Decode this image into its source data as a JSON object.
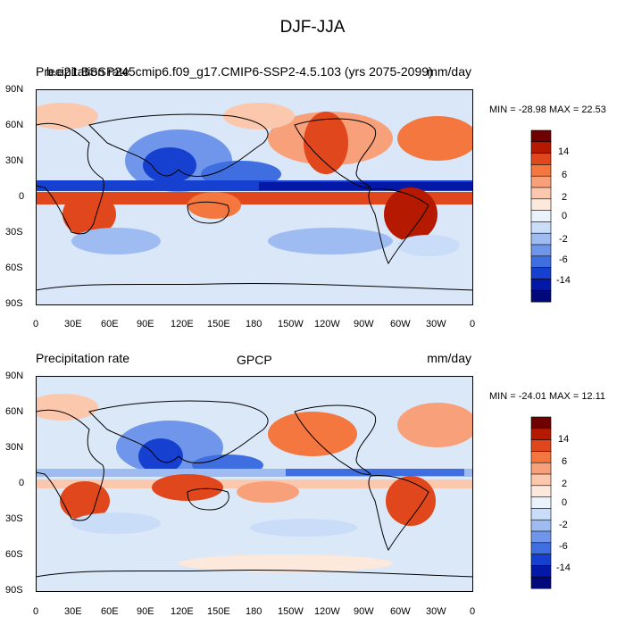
{
  "figure": {
    "title": "DJF-JJA"
  },
  "panels": [
    {
      "left_label": "Precipitation rate",
      "case_label": "b.e21.BSSP245cmip6.f09_g17.CMIP6-SSP2-4.5.103 (yrs 2075-2099)",
      "right_label": "mm/day",
      "min_max": "MIN = -28.98 MAX = 22.53",
      "lat_ticks": [
        "90N",
        "60N",
        "30N",
        "0",
        "30S",
        "60S",
        "90S"
      ],
      "lon_ticks": [
        "0",
        "30E",
        "60E",
        "90E",
        "120E",
        "150E",
        "180",
        "150W",
        "120W",
        "90W",
        "60W",
        "30W",
        "0"
      ]
    },
    {
      "left_label": "Precipitation rate",
      "case_label": "GPCP",
      "right_label": "mm/day",
      "min_max": "MIN = -24.01 MAX = 12.11",
      "lat_ticks": [
        "90N",
        "60N",
        "30N",
        "0",
        "30S",
        "60S",
        "90S"
      ],
      "lon_ticks": [
        "0",
        "30E",
        "60E",
        "90E",
        "120E",
        "150E",
        "180",
        "150W",
        "120W",
        "90W",
        "60W",
        "30W",
        "0"
      ]
    }
  ],
  "colorbar": {
    "labels": [
      "14",
      "6",
      "2",
      "0",
      "-2",
      "-6",
      "-14"
    ],
    "colors": [
      "#6e0000",
      "#b51a00",
      "#e0471c",
      "#f3773e",
      "#f8a07a",
      "#fcc8ad",
      "#fde8dc",
      "#eaf2fc",
      "#c9dcf8",
      "#9ebcf2",
      "#6f96ea",
      "#3e6ee0",
      "#1640d0",
      "#0418a8",
      "#00087a"
    ]
  }
}
